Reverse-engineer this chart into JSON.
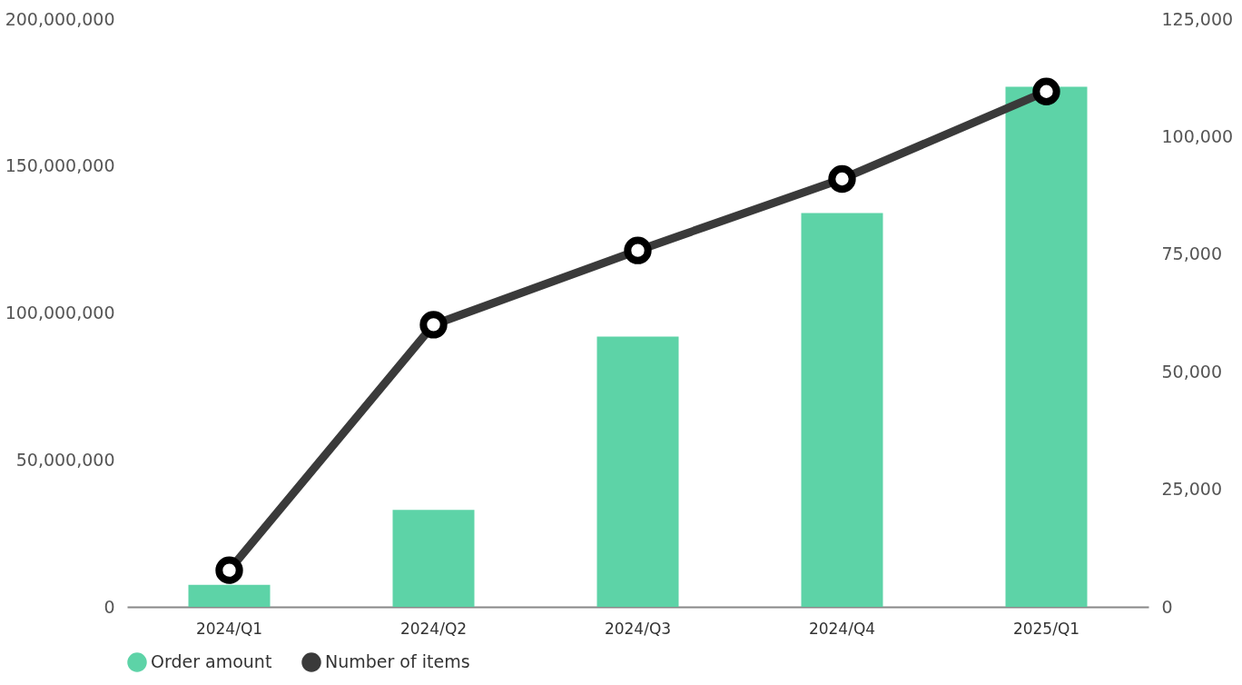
{
  "chart_data": {
    "type": "bar",
    "categories": [
      "2024/Q1",
      "2024/Q2",
      "2024/Q3",
      "2024/Q4",
      "2025/Q1"
    ],
    "series": [
      {
        "name": "Order amount",
        "color": "#5dd3a7",
        "values": [
          7500000,
          33000000,
          92000000,
          134000000,
          177000000
        ]
      },
      {
        "name": "Number of items",
        "type": "line",
        "axis": "y2",
        "color": "#3a3a3a",
        "values": [
          7800,
          60000,
          75800,
          91000,
          109600
        ]
      }
    ],
    "ylim": [
      0,
      200000000
    ],
    "yticks": [
      0,
      {
        "value": 50000000,
        "label": "50,000,000"
      },
      {
        "value": 100000000,
        "label": "100,000,000"
      },
      {
        "value": 150000000,
        "label": "150,000,000"
      },
      {
        "value": 200000000,
        "label": "200,000,000"
      }
    ],
    "y2lim": [
      0,
      125000
    ],
    "y2ticks": [
      0,
      {
        "value": 25000,
        "label": "25,000"
      },
      {
        "value": 50000,
        "label": "50,000"
      },
      {
        "value": 75000,
        "label": "75,000"
      },
      {
        "value": 100000,
        "label": "100,000"
      },
      {
        "value": 125000,
        "label": "125,000"
      }
    ],
    "grid": false,
    "legend": "bottom",
    "marker": "circle",
    "line_style": "solid"
  }
}
